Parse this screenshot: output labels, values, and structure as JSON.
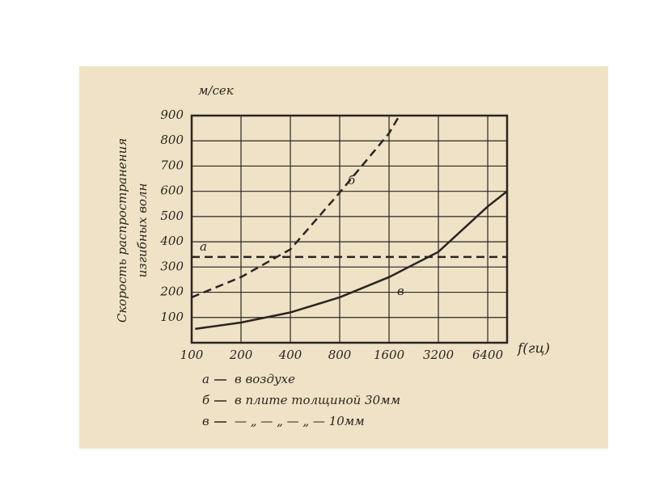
{
  "chart_data": {
    "type": "line",
    "y_unit": "м/сек",
    "ylabel": [
      "Скорость распространения",
      "изгибных волн"
    ],
    "xlabel": "f(гц)",
    "xscale": "log",
    "xlim": [
      100,
      8400
    ],
    "xticks": [
      100,
      200,
      400,
      800,
      1600,
      3200,
      6400
    ],
    "ylim": [
      0,
      900
    ],
    "yticks": [
      100,
      200,
      300,
      400,
      500,
      600,
      700,
      800,
      900
    ],
    "grid": true,
    "series": [
      {
        "name": "а",
        "description": "в воздухе",
        "color": "#2a2520",
        "dash": true,
        "x": [
          100,
          8400
        ],
        "values": [
          340,
          340
        ]
      },
      {
        "name": "б",
        "description": "в плите толщиной 30мм",
        "color": "#2a2520",
        "dash": true,
        "x": [
          100,
          200,
          400,
          800,
          1600,
          1850
        ],
        "values": [
          180,
          260,
          370,
          595,
          830,
          900
        ]
      },
      {
        "name": "в",
        "description": "— „ — „ — „ — 10мм",
        "color": "#2a2520",
        "dash": false,
        "x": [
          105,
          200,
          400,
          800,
          1600,
          3200,
          6400,
          8400
        ],
        "values": [
          55,
          80,
          120,
          180,
          260,
          360,
          540,
          600
        ]
      }
    ]
  }
}
